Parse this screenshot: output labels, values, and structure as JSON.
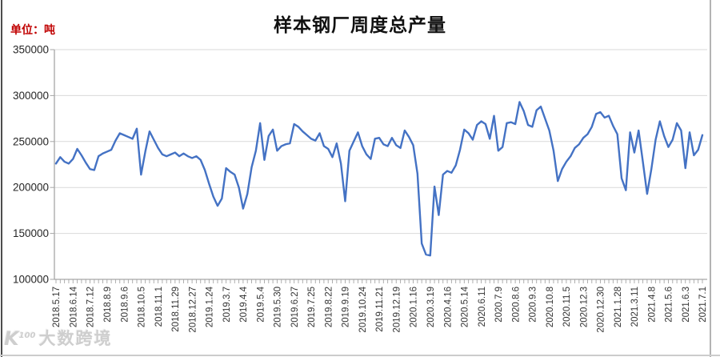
{
  "chart": {
    "title": "样本钢厂周度总产量",
    "unit_label": "单位：吨",
    "line_color": "#4472C4",
    "gridline_color": "#d9d9d9",
    "axis_color": "#a6a6a6",
    "tick_label_color": "#333333",
    "watermark": {
      "logo_k": "K",
      "logo_sup": "100",
      "text": "大数跨境"
    }
  },
  "chart_data": {
    "type": "line",
    "title": "样本钢厂周度总产量",
    "ylabel": "单位：吨",
    "legend_position": "none",
    "grid": true,
    "ylim": [
      100000,
      350000
    ],
    "y_ticks": [
      100000,
      150000,
      200000,
      250000,
      300000,
      350000
    ],
    "x_label_every": 4,
    "x_tick_labels": [
      "2018.5.17",
      "2018.6.14",
      "2018.7.12",
      "2018.8.9",
      "2018.9.6",
      "2018.10.5",
      "2018.11.1",
      "2018.11.29",
      "2018.12.27",
      "2019.1.24",
      "2019.3.7",
      "2019.4.4",
      "2019.5.4",
      "2019.5.30",
      "2019.6.27",
      "2019.7.25",
      "2019.8.22",
      "2019.9.19",
      "2019.10.24",
      "2019.11.21",
      "2019.12.19",
      "2020.1.16",
      "2020.3.19",
      "2020.4.16",
      "2020.5.14",
      "2020.6.11",
      "2020.7.9",
      "2020.8.6",
      "2020.9.3",
      "2020.10.8",
      "2020.11.5",
      "2020.12.3",
      "2020.12.30",
      "2021.1.28",
      "2021.3.11",
      "2021.4.8",
      "2021.5.6",
      "2021.6.3",
      "2021.7.1"
    ],
    "series": [
      {
        "name": "样本钢厂周度总产量",
        "values": [
          226000,
          233000,
          228000,
          226000,
          231000,
          242000,
          235000,
          227000,
          220000,
          219000,
          234000,
          237000,
          239000,
          241000,
          251000,
          259000,
          257000,
          255000,
          253000,
          264000,
          214000,
          239000,
          261000,
          252000,
          243000,
          236000,
          234000,
          236000,
          238000,
          234000,
          237000,
          234000,
          232000,
          234000,
          230000,
          219000,
          204000,
          190000,
          180000,
          188000,
          221000,
          217000,
          214000,
          200000,
          177000,
          193000,
          222000,
          240000,
          270000,
          230000,
          256000,
          263000,
          240000,
          245000,
          247000,
          248000,
          269000,
          266000,
          261000,
          257000,
          253000,
          251000,
          259000,
          245000,
          242000,
          233000,
          248000,
          226000,
          185000,
          240000,
          250000,
          260000,
          245000,
          236000,
          231000,
          253000,
          254000,
          247000,
          245000,
          254000,
          246000,
          243000,
          262000,
          255000,
          246000,
          215000,
          139000,
          127000,
          126000,
          201000,
          170000,
          214000,
          218000,
          216000,
          224000,
          241000,
          263000,
          259000,
          252000,
          268000,
          272000,
          269000,
          253000,
          278000,
          240000,
          244000,
          270000,
          271000,
          269000,
          293000,
          283000,
          268000,
          266000,
          284000,
          288000,
          275000,
          262000,
          240000,
          207000,
          220000,
          228000,
          234000,
          243000,
          247000,
          254000,
          258000,
          266000,
          280000,
          282000,
          276000,
          278000,
          267000,
          258000,
          210000,
          197000,
          260000,
          238000,
          262000,
          228000,
          193000,
          220000,
          252000,
          272000,
          256000,
          244000,
          252000,
          270000,
          262000,
          221000,
          260000,
          235000,
          241000,
          257000
        ]
      }
    ]
  }
}
